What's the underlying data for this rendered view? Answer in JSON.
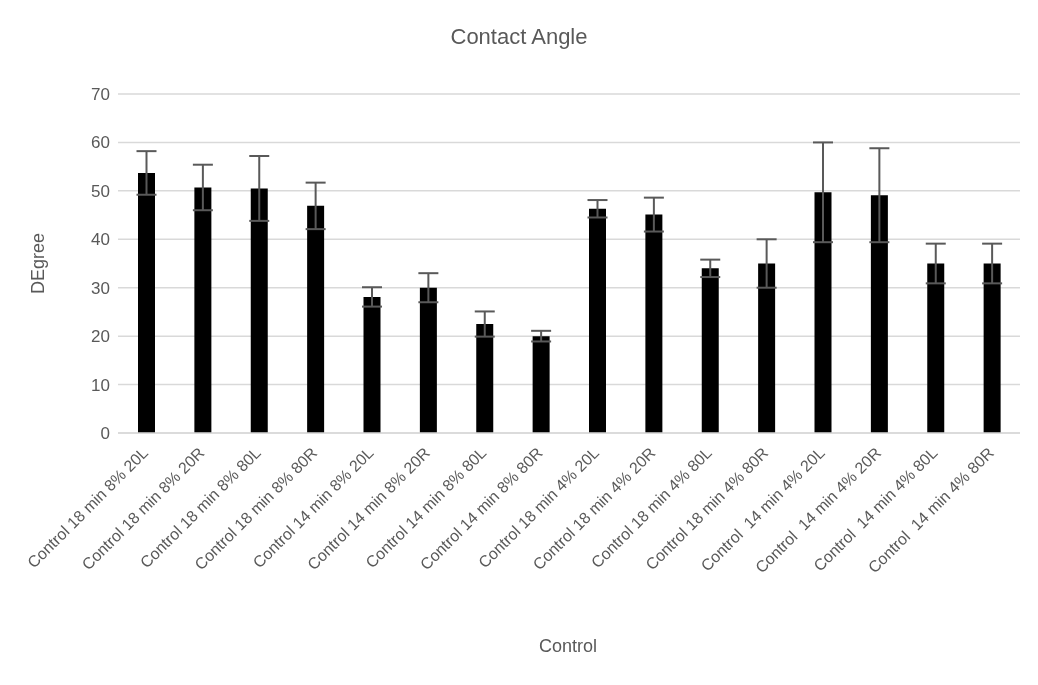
{
  "chart_data": {
    "type": "bar",
    "title": "Contact Angle",
    "xlabel": "Control",
    "ylabel": "DEgree",
    "categories": [
      "Control 18 min 8% 20L",
      "Control 18 min 8% 20R",
      "Control 18 min 8% 80L",
      "Control 18 min 8% 80R",
      "Control 14 min 8% 20L",
      "Control 14 min 8% 20R",
      "Control 14 min 8% 80L",
      "Control 14 min 8% 80R",
      "Control 18 min 4% 20L",
      "Control 18 min 4% 20R",
      "Control 18 min 4% 80L",
      "Control 18 min 4% 80R",
      "Control  14 min 4% 20L",
      "Control  14 min 4% 20R",
      "Control  14 min 4% 80L",
      "Control  14 min 4% 80R"
    ],
    "values": [
      53.7,
      50.7,
      50.5,
      46.9,
      28.1,
      30.0,
      22.5,
      20.0,
      46.3,
      45.1,
      34.0,
      35.0,
      49.7,
      49.1,
      35.0,
      35.0
    ],
    "errors": [
      4.5,
      4.7,
      6.7,
      4.8,
      2.0,
      3.0,
      2.6,
      1.1,
      1.8,
      3.5,
      1.8,
      5.0,
      10.3,
      9.7,
      4.1,
      4.1
    ],
    "color": "#000000",
    "ylim": [
      0,
      70
    ],
    "yticks": [
      0,
      10,
      20,
      30,
      40,
      50,
      60,
      70
    ],
    "grid": "y"
  }
}
